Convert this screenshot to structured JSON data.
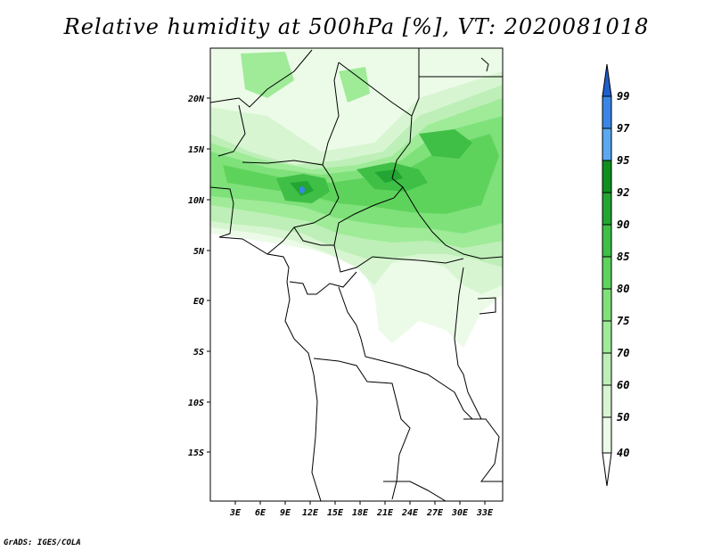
{
  "title": "Relative humidity at 500hPa [%], VT: 2020081018",
  "footer": "GrADS: IGES/COLA",
  "map": {
    "lon_ticks": [
      "3E",
      "6E",
      "9E",
      "12E",
      "15E",
      "18E",
      "21E",
      "24E",
      "27E",
      "30E",
      "33E"
    ],
    "lat_ticks": [
      "20N",
      "15N",
      "10N",
      "5N",
      "EQ",
      "5S",
      "10S",
      "15S"
    ]
  },
  "colorbar": {
    "levels": [
      "99",
      "97",
      "95",
      "92",
      "90",
      "85",
      "80",
      "75",
      "70",
      "60",
      "50",
      "40"
    ],
    "colors": [
      "#1e5fcf",
      "#3a86e6",
      "#5aa9f0",
      "#0e8f1e",
      "#22a532",
      "#3fbf46",
      "#5ed35c",
      "#7fe17a",
      "#9feb98",
      "#beefb8",
      "#d8f5d2",
      "#ecfbe8"
    ]
  }
}
